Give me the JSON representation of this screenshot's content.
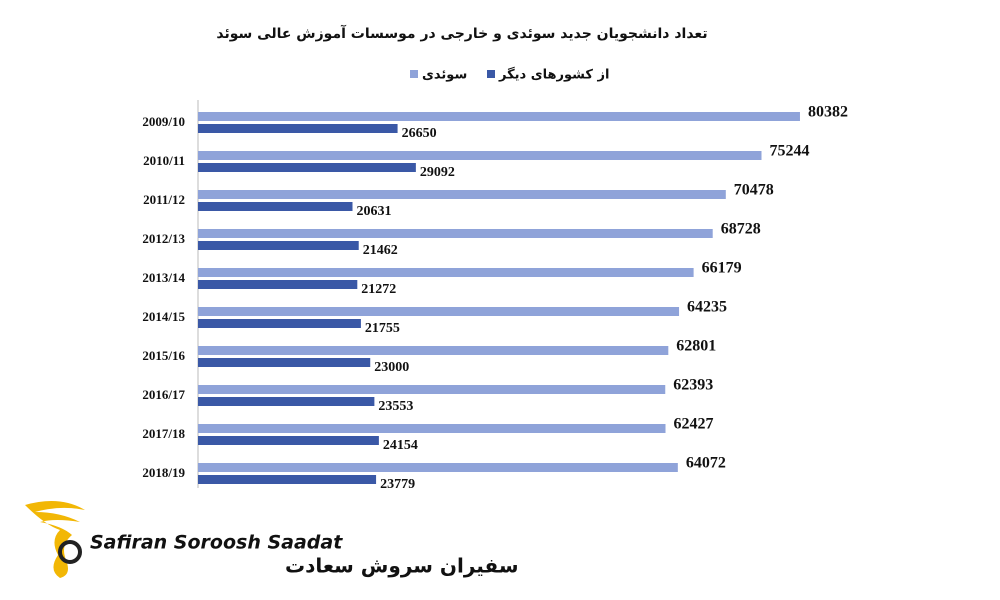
{
  "chart_data": {
    "type": "hbar",
    "title": "تعداد دانشجویان جدید سوئدی و خارجی در موسسات آموزش عالی سوئد",
    "categories": [
      "2009/10",
      "2010/11",
      "2011/12",
      "2012/13",
      "2013/14",
      "2014/15",
      "2015/16",
      "2016/17",
      "2017/18",
      "2018/19"
    ],
    "series": [
      {
        "name": "سوئدی",
        "color": "#8fa3d9",
        "values": [
          80382,
          75244,
          70478,
          68728,
          66179,
          64235,
          62801,
          62393,
          62427,
          64072
        ]
      },
      {
        "name": "از کشورهای دیگر",
        "color": "#3a58a6",
        "values": [
          26650,
          29092,
          20631,
          21462,
          21272,
          21755,
          23000,
          23553,
          24154,
          23779
        ]
      }
    ],
    "xlim": [
      0,
      90000
    ]
  },
  "logo": {
    "latin": "Safiran Soroosh Saadat",
    "persian": "سفیران سروش سعادت"
  }
}
